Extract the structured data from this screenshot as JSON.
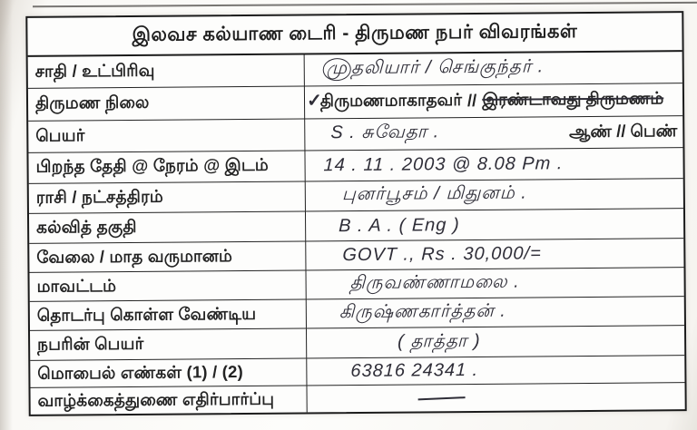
{
  "colors": {
    "paper": "#fdfdfc",
    "border": "#1b1b1b",
    "printed_text": "#232323",
    "ink": "#2e2d37"
  },
  "title": "இலவச கல்யாண டைரி - திருமண நபர் விவரங்கள்",
  "form": {
    "caste": {
      "label": "சாதி / உட்பிரிவு",
      "value_circled_part": "மு",
      "value_rest": "தலியார் / செங்குந்தர் ."
    },
    "marital_status": {
      "label": "திருமண நிலை",
      "checkmark": "✓",
      "option_checked": "திருமணமாகாதவர்",
      "separator": "//",
      "option_struck": "இரண்டாவது திருமணம்"
    },
    "name": {
      "label": "பெயர்",
      "value": "S . சுவேதா .",
      "printed_right": "ஆண் // பெண்"
    },
    "birth": {
      "label": "பிறந்த தேதி @ நேரம் @ இடம்",
      "value": "14 . 11 . 2003  @  8.08 Pm ."
    },
    "rasi": {
      "label": "ராசி / நட்சத்திரம்",
      "value": "புனர்பூசம் / மிதுனம் ."
    },
    "education": {
      "label": "கல்வித் தகுதி",
      "value": "B . A .  ( Eng )"
    },
    "job_income": {
      "label": "வேலை / மாத வருமானம்",
      "value": "GOVT .,   Rs . 30,000/="
    },
    "district": {
      "label": "மாவட்டம்",
      "value": "திருவண்ணாமலை ."
    },
    "contact_person_line1": {
      "label": "தொடர்பு கொள்ள வேண்டிய",
      "value": "கிருஷ்ணகார்த்தன் ."
    },
    "contact_person_line2": {
      "label": "நபரின் பெயர்",
      "value": "( தாத்தா )"
    },
    "mobile": {
      "label": "மொபைல் எண்கள் (1) / (2)",
      "value": "63816  24341 ."
    },
    "partner_expectation": {
      "label": "வாழ்க்கைத்துணை எதிர்பார்ப்பு",
      "value": ""
    }
  }
}
